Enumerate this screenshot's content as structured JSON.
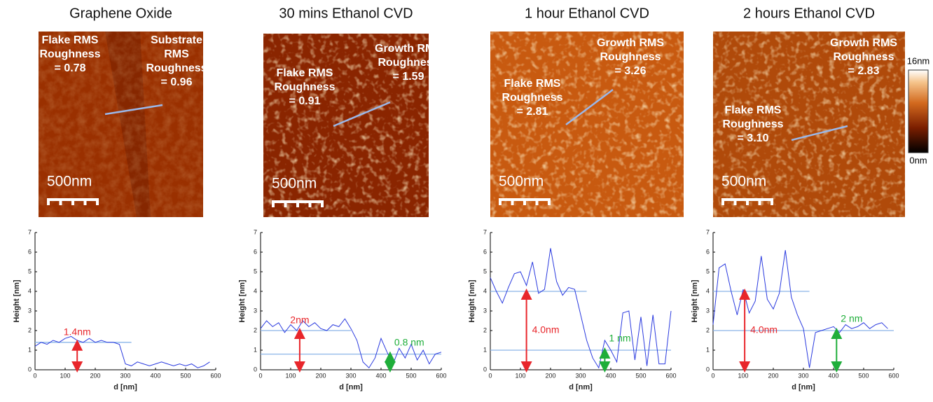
{
  "chart_data": [
    {
      "type": "line",
      "title": "Graphene Oxide",
      "image": {
        "labels": [
          {
            "lines": [
              "Flake RMS",
              "Roughness",
              "= 0.78"
            ]
          },
          {
            "lines": [
              "Substrate",
              "RMS",
              "Roughness",
              "= 0.96"
            ]
          }
        ],
        "scale_bar": "500nm"
      },
      "x": [
        0,
        20,
        40,
        60,
        80,
        100,
        120,
        140,
        160,
        180,
        200,
        220,
        240,
        260,
        280,
        300,
        320,
        340,
        360,
        380,
        400,
        420,
        440,
        460,
        480,
        500,
        520,
        540,
        560,
        580
      ],
      "series": [
        {
          "color": "#2a3adf",
          "values": [
            1.2,
            1.4,
            1.3,
            1.5,
            1.4,
            1.6,
            1.7,
            1.5,
            1.4,
            1.6,
            1.4,
            1.5,
            1.4,
            1.4,
            1.3,
            0.3,
            0.2,
            0.4,
            0.3,
            0.2,
            0.3,
            0.4,
            0.3,
            0.2,
            0.3,
            0.2,
            0.3,
            0.1,
            0.2,
            0.4
          ]
        }
      ],
      "annotations": [
        {
          "label": "1.4nm",
          "value": 1.4,
          "x": 140,
          "span": [
            0,
            320
          ],
          "color": "#e8262b"
        }
      ],
      "xlim": [
        0,
        600
      ],
      "xticks": [
        0,
        100,
        200,
        300,
        400,
        500,
        600
      ],
      "ylim": [
        0,
        7
      ],
      "yticks": [
        0,
        1,
        2,
        3,
        4,
        5,
        6,
        7
      ],
      "xlabel": "d [nm]",
      "ylabel": "Height [nm]"
    },
    {
      "type": "line",
      "title": "30 mins Ethanol CVD",
      "image": {
        "labels": [
          {
            "lines": [
              "Growth RMS",
              "Roughness",
              "= 1.59"
            ]
          },
          {
            "lines": [
              "Flake RMS",
              "Roughness",
              "= 0.91"
            ]
          }
        ],
        "scale_bar": "500nm"
      },
      "x": [
        0,
        20,
        40,
        60,
        80,
        100,
        120,
        140,
        160,
        180,
        200,
        220,
        240,
        260,
        280,
        300,
        320,
        340,
        360,
        380,
        400,
        420,
        440,
        460,
        480,
        500,
        520,
        540,
        560,
        580,
        600
      ],
      "series": [
        {
          "color": "#2a3adf",
          "values": [
            2.1,
            2.5,
            2.2,
            2.4,
            1.9,
            2.3,
            2.0,
            2.5,
            2.2,
            2.4,
            2.1,
            2.0,
            2.3,
            2.2,
            2.6,
            2.1,
            1.5,
            0.4,
            0.1,
            0.6,
            1.6,
            0.9,
            0.3,
            1.1,
            0.6,
            1.3,
            0.5,
            1.0,
            0.3,
            0.8,
            0.9
          ]
        }
      ],
      "annotations": [
        {
          "label": "2nm",
          "value": 2,
          "x": 130,
          "span": [
            0,
            300
          ],
          "color": "#e8262b"
        },
        {
          "label": "0.8 nm",
          "value": 0.8,
          "x": 430,
          "span": [
            0,
            600
          ],
          "color": "#1fae3a"
        }
      ],
      "xlim": [
        0,
        600
      ],
      "xticks": [
        0,
        100,
        200,
        300,
        400,
        500,
        600
      ],
      "ylim": [
        0,
        7
      ],
      "yticks": [
        0,
        1,
        2,
        3,
        4,
        5,
        6,
        7
      ],
      "xlabel": "d [nm]",
      "ylabel": "Height [nm]"
    },
    {
      "type": "line",
      "title": "1 hour Ethanol CVD",
      "image": {
        "labels": [
          {
            "lines": [
              "Growth RMS",
              "Roughness",
              "= 3.26"
            ]
          },
          {
            "lines": [
              "Flake RMS",
              "Roughness",
              "= 2.81"
            ]
          }
        ],
        "scale_bar": "500nm"
      },
      "x": [
        0,
        20,
        40,
        60,
        80,
        100,
        120,
        140,
        160,
        180,
        200,
        220,
        240,
        260,
        280,
        300,
        320,
        340,
        360,
        380,
        400,
        420,
        440,
        460,
        480,
        500,
        520,
        540,
        560,
        580,
        600
      ],
      "series": [
        {
          "color": "#2a3adf",
          "values": [
            4.7,
            4.0,
            3.4,
            4.2,
            4.9,
            5.0,
            4.3,
            5.5,
            3.9,
            4.1,
            6.2,
            4.5,
            3.8,
            4.2,
            4.1,
            2.8,
            1.5,
            0.6,
            0.1,
            1.5,
            1.0,
            0.4,
            2.9,
            3.0,
            0.5,
            2.7,
            0.2,
            2.8,
            0.3,
            0.3,
            3.0
          ]
        }
      ],
      "annotations": [
        {
          "label": "4.0nm",
          "value": 4.0,
          "x": 120,
          "span": [
            0,
            320
          ],
          "color": "#e8262b"
        },
        {
          "label": "1 nm",
          "value": 1,
          "x": 380,
          "span": [
            0,
            600
          ],
          "color": "#1fae3a"
        }
      ],
      "xlim": [
        0,
        600
      ],
      "xticks": [
        0,
        100,
        200,
        300,
        400,
        500,
        600
      ],
      "ylim": [
        0,
        7
      ],
      "yticks": [
        0,
        1,
        2,
        3,
        4,
        5,
        6,
        7
      ],
      "xlabel": "d [nm]",
      "ylabel": "Height [nm]"
    },
    {
      "type": "line",
      "title": "2 hours Ethanol CVD",
      "image": {
        "labels": [
          {
            "lines": [
              "Growth RMS",
              "Roughness",
              "= 2.83"
            ]
          },
          {
            "lines": [
              "Flake RMS",
              "Roughness",
              "= 3.10"
            ]
          }
        ],
        "scale_bar": "500nm",
        "colorbar": {
          "max": "16nm",
          "min": "0nm"
        }
      },
      "x": [
        0,
        20,
        40,
        60,
        80,
        100,
        120,
        140,
        160,
        180,
        200,
        220,
        240,
        260,
        280,
        300,
        320,
        340,
        360,
        380,
        400,
        420,
        440,
        460,
        480,
        500,
        520,
        540,
        560,
        580
      ],
      "series": [
        {
          "color": "#2a3adf",
          "values": [
            2.3,
            5.2,
            5.4,
            4.0,
            2.8,
            4.1,
            2.9,
            3.5,
            5.8,
            3.6,
            3.1,
            3.9,
            6.1,
            3.7,
            2.8,
            2.1,
            0.1,
            1.9,
            2.0,
            2.1,
            2.2,
            1.9,
            2.3,
            2.1,
            2.2,
            2.4,
            2.1,
            2.3,
            2.4,
            2.1
          ]
        }
      ],
      "annotations": [
        {
          "label": "4.0nm",
          "value": 4.0,
          "x": 105,
          "span": [
            0,
            320
          ],
          "color": "#e8262b"
        },
        {
          "label": "2 nm",
          "value": 2,
          "x": 410,
          "span": [
            0,
            600
          ],
          "color": "#1fae3a"
        }
      ],
      "xlim": [
        0,
        600
      ],
      "xticks": [
        0,
        100,
        200,
        300,
        400,
        500,
        600
      ],
      "ylim": [
        0,
        7
      ],
      "yticks": [
        0,
        1,
        2,
        3,
        4,
        5,
        6,
        7
      ],
      "xlabel": "d [nm]",
      "ylabel": "Height [nm]"
    }
  ]
}
